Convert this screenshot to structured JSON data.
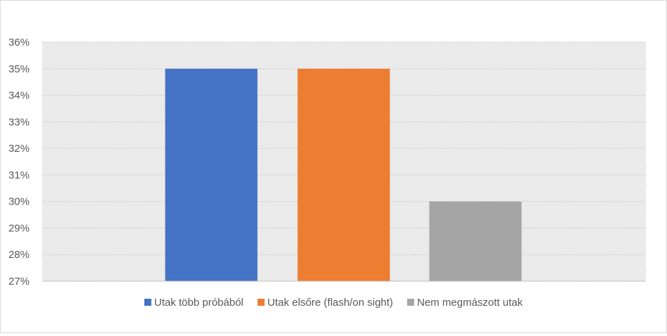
{
  "chart_data": {
    "type": "bar",
    "title": "",
    "xlabel": "",
    "ylabel": "",
    "ylim": [
      27,
      36
    ],
    "y_ticks": [
      "36%",
      "35%",
      "34%",
      "33%",
      "32%",
      "31%",
      "30%",
      "29%",
      "28%",
      "27%"
    ],
    "grid": true,
    "legend_position": "bottom",
    "series": [
      {
        "name": "Utak több próbából",
        "value": 35,
        "color": "#4472C4"
      },
      {
        "name": "Utak elsőre (flash/on sight)",
        "value": 35,
        "color": "#ED7D31"
      },
      {
        "name": "Nem megmászott utak",
        "value": 30,
        "color": "#A5A5A5"
      }
    ]
  }
}
